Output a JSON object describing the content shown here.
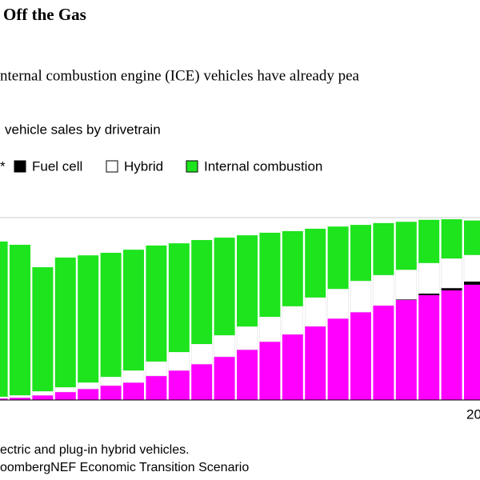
{
  "chart_data": {
    "type": "stacked_bar",
    "title": "Off the Gas",
    "subtitle": "nternal combustion engine (ICE) vehicles have already pea",
    "y_label": "vehicle sales by drivetrain",
    "categories": [
      null,
      null,
      null,
      null,
      null,
      null,
      null,
      null,
      null,
      null,
      null,
      null,
      null,
      null,
      null,
      null,
      null,
      null,
      null,
      null,
      null,
      "20"
    ],
    "ylim": [
      0,
      100
    ],
    "series": [
      {
        "name": "*",
        "color": "#ff00ff",
        "values": [
          0.9,
          1.3,
          2.6,
          4.4,
          6.1,
          7.9,
          9.6,
          13.2,
          16.2,
          19.7,
          23.7,
          27.6,
          32.0,
          36.0,
          40.4,
          44.7,
          48.2,
          51.8,
          54.8,
          57.5,
          60.1,
          63.2
        ]
      },
      {
        "name": "Fuel cell",
        "color": "#000000",
        "values": [
          0,
          0,
          0,
          0,
          0,
          0,
          0,
          0,
          0,
          0,
          0,
          0,
          0,
          0,
          0,
          0,
          0,
          0,
          0.4,
          0.9,
          1.3,
          1.8
        ]
      },
      {
        "name": "Hybrid",
        "color": "#ffffff",
        "values": [
          0.9,
          1.3,
          2.2,
          2.6,
          3.5,
          4.8,
          6.6,
          7.9,
          10.1,
          11.0,
          11.8,
          12.7,
          13.6,
          15.4,
          15.8,
          16.2,
          17.1,
          16.7,
          16.2,
          16.7,
          16.2,
          14.5
        ]
      },
      {
        "name": "Internal combustion",
        "color": "#1de41d",
        "values": [
          85.1,
          82.5,
          68.0,
          71.1,
          69.7,
          68.0,
          66.2,
          63.6,
          59.6,
          57.0,
          53.5,
          50.0,
          46.1,
          41.2,
          37.7,
          34.2,
          30.7,
          28.5,
          26.3,
          23.7,
          21.5,
          18.9
        ]
      }
    ],
    "notes": [
      "ectric and plug-in hybrid vehicles.",
      "oombergNEF Economic Transition Scenario"
    ]
  }
}
